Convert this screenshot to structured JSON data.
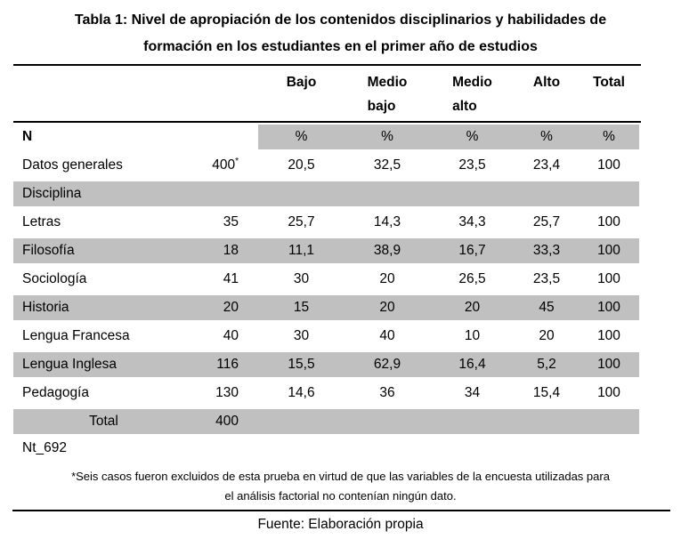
{
  "title": {
    "line1": "Tabla 1: Nivel de apropiación de los contenidos disciplinarios y habilidades de",
    "line2": "formación en los estudiantes en el primer año de estudios"
  },
  "table": {
    "col_headers": [
      "Bajo",
      "Medio\nbajo",
      "Medio\nalto",
      "Alto",
      "Total"
    ],
    "n_label": "N",
    "percent_label": "%",
    "rows": [
      {
        "label": "Datos generales",
        "n": "400",
        "n_sup": "*",
        "values": [
          "20,5",
          "32,5",
          "23,5",
          "23,4",
          "100"
        ]
      },
      {
        "label": "Disciplina",
        "n": "",
        "values": [
          "",
          "",
          "",
          "",
          ""
        ]
      },
      {
        "label": "Letras",
        "n": "35",
        "values": [
          "25,7",
          "14,3",
          "34,3",
          "25,7",
          "100"
        ]
      },
      {
        "label": "Filosofía",
        "n": "18",
        "values": [
          "11,1",
          "38,9",
          "16,7",
          "33,3",
          "100"
        ]
      },
      {
        "label": "Sociología",
        "n": "41",
        "values": [
          "30",
          "20",
          "26,5",
          "23,5",
          "100"
        ]
      },
      {
        "label": "Historia",
        "n": "20",
        "values": [
          "15",
          "20",
          "20",
          "45",
          "100"
        ]
      },
      {
        "label": "Lengua Francesa",
        "n": "40",
        "values": [
          "30",
          "40",
          "10",
          "20",
          "100"
        ]
      },
      {
        "label": "Lengua Inglesa",
        "n": "116",
        "values": [
          "15,5",
          "62,9",
          "16,4",
          "5,2",
          "100"
        ]
      },
      {
        "label": "Pedagogía",
        "n": "130",
        "values": [
          "14,6",
          "36",
          "34",
          "15,4",
          "100"
        ]
      },
      {
        "label": "Total",
        "n": "400",
        "values": [
          "",
          "",
          "",
          "",
          ""
        ]
      }
    ]
  },
  "note_label": "Nt_692",
  "footnote": {
    "line1": "*Seis casos fueron excluidos de esta prueba en virtud de que las variables de la encuesta utilizadas para",
    "line2": "el análisis factorial no contenían ningún dato."
  },
  "source": "Fuente: Elaboración propia",
  "colors": {
    "row_shade": "#c0c0c0",
    "rule": "#000000"
  }
}
